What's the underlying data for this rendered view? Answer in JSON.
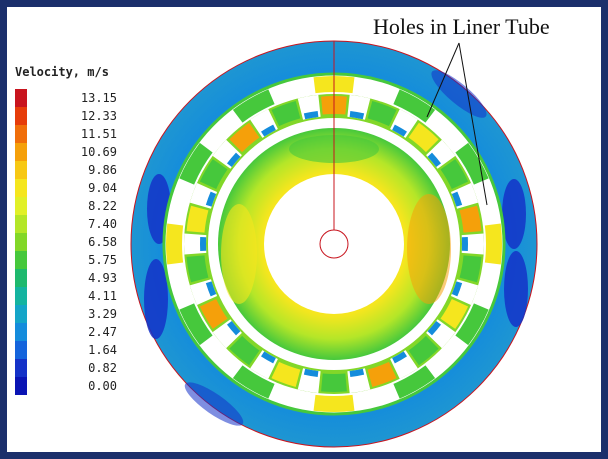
{
  "annotation": {
    "label": "Holes in Liner Tube"
  },
  "legend": {
    "title": "Velocity, m/s",
    "items": [
      {
        "value": "13.15",
        "color": "#c8141e"
      },
      {
        "value": "12.33",
        "color": "#e63c0a"
      },
      {
        "value": "11.51",
        "color": "#f06e0a"
      },
      {
        "value": "10.69",
        "color": "#f5a00a"
      },
      {
        "value": "9.86",
        "color": "#f7c814"
      },
      {
        "value": "9.04",
        "color": "#f5e61e"
      },
      {
        "value": "8.22",
        "color": "#e1f028"
      },
      {
        "value": "7.40",
        "color": "#b4e628"
      },
      {
        "value": "6.58",
        "color": "#82d728"
      },
      {
        "value": "5.75",
        "color": "#46c83c"
      },
      {
        "value": "4.93",
        "color": "#1eb96e"
      },
      {
        "value": "4.11",
        "color": "#14b4a0"
      },
      {
        "value": "3.29",
        "color": "#14a5c8"
      },
      {
        "value": "2.47",
        "color": "#148cdc"
      },
      {
        "value": "1.64",
        "color": "#1464dc"
      },
      {
        "value": "0.82",
        "color": "#1432c8"
      },
      {
        "value": "0.00",
        "color": "#0a14b4"
      }
    ]
  },
  "colors": {
    "outer_blue": "#148cdc",
    "outer_cyan": "#14b4a0",
    "dark_blue": "#1432c8",
    "green": "#46c83c",
    "yellow": "#f5e61e",
    "orange": "#f5a00a",
    "red_line": "#c8141e",
    "frame_border": "#1b2f6b"
  }
}
